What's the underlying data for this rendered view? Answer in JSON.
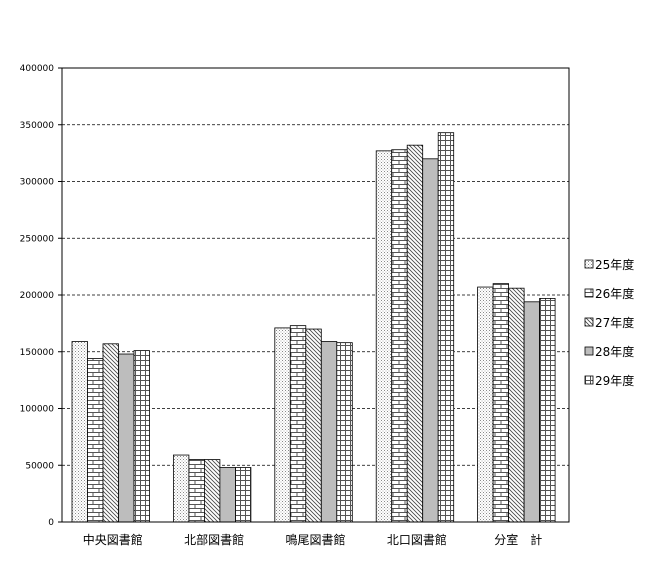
{
  "chart_data": {
    "type": "bar",
    "title": "",
    "xlabel": "",
    "ylabel": "",
    "categories": [
      "中央図書館",
      "北部図書館",
      "鳴尾図書館",
      "北口図書館",
      "分室　計"
    ],
    "ylim": [
      0,
      400000
    ],
    "yticks": [
      0,
      50000,
      100000,
      150000,
      200000,
      250000,
      300000,
      350000,
      400000
    ],
    "ytick_labels": [
      "0",
      "50000",
      "100000",
      "150000",
      "200000",
      "250000",
      "300000",
      "350000",
      "400000"
    ],
    "grid": "horizontal dashed",
    "legend_position": "right",
    "series": [
      {
        "name": "25年度",
        "pattern": "dots",
        "values": [
          159000,
          59000,
          171000,
          327000,
          207000
        ]
      },
      {
        "name": "26年度",
        "pattern": "bricks",
        "values": [
          144000,
          55000,
          173000,
          328000,
          210000
        ]
      },
      {
        "name": "27年度",
        "pattern": "diagonal",
        "values": [
          157000,
          55000,
          170000,
          332000,
          206000
        ]
      },
      {
        "name": "28年度",
        "pattern": "gray",
        "values": [
          148000,
          48000,
          159000,
          320000,
          194000
        ]
      },
      {
        "name": "29年度",
        "pattern": "grid",
        "values": [
          151000,
          48000,
          158000,
          343000,
          197000
        ]
      }
    ]
  }
}
